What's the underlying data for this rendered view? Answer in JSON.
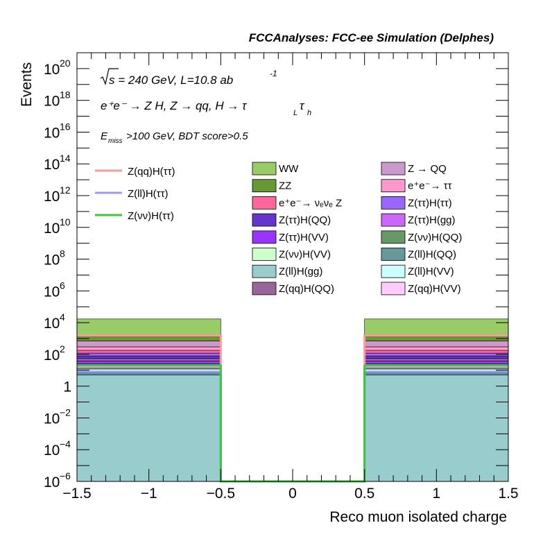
{
  "chart_data": {
    "type": "bar",
    "title": "FCCAnalyses: FCC-ee Simulation (Delphes)",
    "xlabel": "Reco muon isolated charge",
    "ylabel": "Events",
    "xlim": [
      -1.5,
      1.5
    ],
    "ylim": [
      1e-06,
      1e+21
    ],
    "log_y": true,
    "bin_edges": [
      -1.5,
      -0.5,
      0.5,
      1.5
    ],
    "x_ticks": [
      "−1.5",
      "−1",
      "−0.5",
      "0",
      "0.5",
      "1",
      "1.5"
    ],
    "x_tick_values": [
      -1.5,
      -1,
      -0.5,
      0,
      0.5,
      1,
      1.5
    ],
    "y_tick_labels": [
      {
        "exp": 20,
        "text": "10",
        "sup": "20"
      },
      {
        "exp": 18,
        "text": "10",
        "sup": "18"
      },
      {
        "exp": 16,
        "text": "10",
        "sup": "16"
      },
      {
        "exp": 14,
        "text": "10",
        "sup": "14"
      },
      {
        "exp": 12,
        "text": "10",
        "sup": "12"
      },
      {
        "exp": 10,
        "text": "10",
        "sup": "10"
      },
      {
        "exp": 8,
        "text": "10",
        "sup": "8"
      },
      {
        "exp": 6,
        "text": "10",
        "sup": "6"
      },
      {
        "exp": 4,
        "text": "10",
        "sup": "4"
      },
      {
        "exp": 2,
        "text": "10",
        "sup": "2"
      },
      {
        "exp": 0,
        "text": "1",
        "sup": ""
      },
      {
        "exp": -2,
        "text": "10",
        "sup": "−2"
      },
      {
        "exp": -4,
        "text": "10",
        "sup": "−4"
      },
      {
        "exp": -6,
        "text": "10",
        "sup": "−6"
      }
    ],
    "annotations": {
      "sqrt_s": "s",
      "energy_lumi": " = 240 GeV, L=10.8 ab",
      "lumi_exp": "-1",
      "process": "e⁺e⁻ → Z H, Z  → qq, H  → τ",
      "process_sub1": "L",
      "process_tau2": "τ",
      "process_sub2": "h",
      "selection_e": "E",
      "selection_sub": "miss",
      "selection_rest": ">100 GeV, BDT score>0.5"
    },
    "background_stack": {
      "stack_order_bottom_to_top": [
        "Z(ll)H(gg)",
        "Z(ll)H(QQ)",
        "Z(νν)H(QQ)",
        "Z(ll)H(VV)",
        "Z(νν)H(VV)",
        "Z(qq)H(VV)",
        "Z(ττ)H(gg)",
        "Z(ττ)H(VV)",
        "Z(qq)H(QQ)",
        "Z(ττ)H(QQ)",
        "Z(ττ)H(ττ)",
        "e⁺e⁻→ νₑνₑ Z",
        "e⁺e⁻→ ττ",
        "Z → QQ",
        "ZZ",
        "WW"
      ],
      "cumulative_tops": {
        "bin_low": [
          5.0,
          7.0,
          9.0,
          12.0,
          14.0,
          18.0,
          25.0,
          38.0,
          55.0,
          80.0,
          120.0,
          180.0,
          300.0,
          700.0,
          1300.0,
          17000.0
        ],
        "bin_mid": [
          1e-06,
          1e-06,
          1e-06,
          1e-06,
          1e-06,
          1e-06,
          1e-06,
          1e-06,
          1e-06,
          1e-06,
          1e-06,
          1e-06,
          1e-06,
          1e-06,
          1e-06,
          1e-06
        ],
        "bin_high": [
          5.0,
          7.0,
          9.0,
          12.0,
          14.0,
          18.0,
          25.0,
          38.0,
          55.0,
          80.0,
          120.0,
          180.0,
          300.0,
          700.0,
          1300.0,
          17000.0
        ]
      }
    },
    "series": [
      {
        "name": "Z(qq)H(ττ)",
        "kind": "signal_line",
        "color": "#ff9999",
        "values": [
          1500.0,
          1e-06,
          1500.0
        ]
      },
      {
        "name": "Z(ll)H(ττ)",
        "kind": "signal_line",
        "color": "#9999ff",
        "values": [
          8.0,
          1e-06,
          8.0
        ]
      },
      {
        "name": "Z(νν)H(ττ)",
        "kind": "signal_line",
        "color": "#33cc33",
        "values": [
          20.0,
          1e-06,
          20.0
        ]
      },
      {
        "name": "WW",
        "kind": "background",
        "color": "#99cc66"
      },
      {
        "name": "ZZ",
        "kind": "background",
        "color": "#669933"
      },
      {
        "name": "e⁺e⁻→ νₑνₑ Z",
        "kind": "background",
        "color": "#ff6699"
      },
      {
        "name": "Z(ττ)H(QQ)",
        "kind": "background",
        "color": "#6633cc"
      },
      {
        "name": "Z(ττ)H(VV)",
        "kind": "background",
        "color": "#9933ff"
      },
      {
        "name": "Z(νν)H(VV)",
        "kind": "background",
        "color": "#ccffcc"
      },
      {
        "name": "Z(ll)H(gg)",
        "kind": "background",
        "color": "#99cccc"
      },
      {
        "name": "Z(qq)H(QQ)",
        "kind": "background",
        "color": "#996699"
      },
      {
        "name": "Z → QQ",
        "kind": "background",
        "color": "#cc99cc"
      },
      {
        "name": "e⁺e⁻→ ττ",
        "kind": "background",
        "color": "#ff99cc"
      },
      {
        "name": "Z(ττ)H(ττ)",
        "kind": "background",
        "color": "#9966ff"
      },
      {
        "name": "Z(ττ)H(gg)",
        "kind": "background",
        "color": "#cc66ff"
      },
      {
        "name": "Z(νν)H(QQ)",
        "kind": "background",
        "color": "#669966"
      },
      {
        "name": "Z(ll)H(QQ)",
        "kind": "background",
        "color": "#669999"
      },
      {
        "name": "Z(ll)H(VV)",
        "kind": "background",
        "color": "#ccffff"
      },
      {
        "name": "Z(qq)H(VV)",
        "kind": "background",
        "color": "#ffccff"
      }
    ],
    "legend_signal": [
      {
        "name": "Z(qq)H(ττ)",
        "color": "#ff9999"
      },
      {
        "name": "Z(ll)H(ττ)",
        "color": "#9999ff"
      },
      {
        "name": "Z(νν)H(ττ)",
        "color": "#33cc33"
      }
    ],
    "legend_background_left": [
      {
        "name": "WW",
        "color": "#99cc66"
      },
      {
        "name": "ZZ",
        "color": "#669933"
      },
      {
        "name": "e⁺e⁻→ νₑνₑ Z",
        "color": "#ff6699"
      },
      {
        "name": "Z(ττ)H(QQ)",
        "color": "#6633cc"
      },
      {
        "name": "Z(ττ)H(VV)",
        "color": "#9933ff"
      },
      {
        "name": "Z(νν)H(VV)",
        "color": "#ccffcc"
      },
      {
        "name": "Z(ll)H(gg)",
        "color": "#99cccc"
      },
      {
        "name": "Z(qq)H(QQ)",
        "color": "#996699"
      }
    ],
    "legend_background_right": [
      {
        "name": "Z → QQ",
        "color": "#cc99cc"
      },
      {
        "name": "e⁺e⁻→ ττ",
        "color": "#ff99cc"
      },
      {
        "name": "Z(ττ)H(ττ)",
        "color": "#9966ff"
      },
      {
        "name": "Z(ττ)H(gg)",
        "color": "#cc66ff"
      },
      {
        "name": "Z(νν)H(QQ)",
        "color": "#669966"
      },
      {
        "name": "Z(ll)H(QQ)",
        "color": "#669999"
      },
      {
        "name": "Z(ll)H(VV)",
        "color": "#ccffff"
      },
      {
        "name": "Z(qq)H(VV)",
        "color": "#ffccff"
      }
    ],
    "grid": false,
    "legend_placement": "upper-center"
  }
}
